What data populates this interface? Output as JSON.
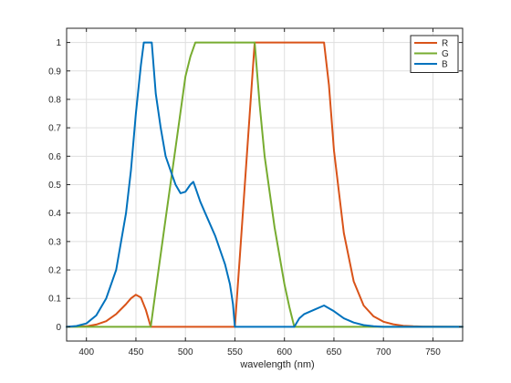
{
  "chart_data": {
    "type": "line",
    "title": "",
    "xlabel": "wavelength (nm)",
    "ylabel": "",
    "xlim": [
      380,
      780
    ],
    "ylim": [
      -0.05,
      1.05
    ],
    "xticks": [
      400,
      450,
      500,
      550,
      600,
      650,
      700,
      750
    ],
    "yticks": [
      0,
      0.1,
      0.2,
      0.3,
      0.4,
      0.5,
      0.6,
      0.7,
      0.8,
      0.9,
      1
    ],
    "ytick_labels": [
      "0",
      "0.1",
      "0.2",
      "0.3",
      "0.4",
      "0.5",
      "0.6",
      "0.7",
      "0.8",
      "0.9",
      "1"
    ],
    "grid": true,
    "legend_position": "top-right",
    "series": [
      {
        "name": "R",
        "color": "#d95319",
        "x": [
          380,
          400,
          410,
          420,
          430,
          440,
          445,
          450,
          455,
          460,
          465,
          470,
          500,
          540,
          550,
          555,
          560,
          565,
          570,
          575,
          580,
          600,
          620,
          640,
          645,
          650,
          660,
          670,
          680,
          690,
          700,
          710,
          720,
          730,
          740,
          780
        ],
        "y": [
          0,
          0.002,
          0.008,
          0.02,
          0.045,
          0.08,
          0.1,
          0.113,
          0.103,
          0.06,
          0,
          0,
          0,
          0,
          0,
          0.25,
          0.5,
          0.75,
          1,
          1,
          1,
          1,
          1,
          1,
          0.85,
          0.62,
          0.33,
          0.16,
          0.075,
          0.037,
          0.018,
          0.009,
          0.004,
          0.002,
          0.001,
          0
        ]
      },
      {
        "name": "G",
        "color": "#77ac30",
        "x": [
          380,
          460,
          465,
          470,
          480,
          490,
          500,
          505,
          510,
          520,
          540,
          560,
          570,
          575,
          580,
          590,
          600,
          605,
          610,
          620,
          780
        ],
        "y": [
          0,
          0,
          0,
          0.13,
          0.38,
          0.63,
          0.88,
          0.95,
          1,
          1,
          1,
          1,
          1,
          0.78,
          0.6,
          0.35,
          0.15,
          0.07,
          0,
          0,
          0
        ]
      },
      {
        "name": "B",
        "color": "#0072bd",
        "x": [
          380,
          390,
          400,
          410,
          420,
          430,
          440,
          445,
          450,
          455,
          458,
          460,
          465,
          466,
          470,
          475,
          480,
          485,
          490,
          495,
          500,
          505,
          508,
          510,
          515,
          520,
          530,
          540,
          545,
          548,
          550,
          560,
          580,
          600,
          610,
          615,
          620,
          630,
          640,
          650,
          660,
          670,
          680,
          690,
          700,
          780
        ],
        "y": [
          0,
          0.003,
          0.012,
          0.04,
          0.1,
          0.2,
          0.4,
          0.55,
          0.75,
          0.92,
          1,
          1,
          1,
          1,
          0.82,
          0.7,
          0.6,
          0.55,
          0.5,
          0.47,
          0.475,
          0.5,
          0.51,
          0.49,
          0.44,
          0.4,
          0.32,
          0.22,
          0.15,
          0.08,
          0,
          0,
          0,
          0,
          0,
          0.03,
          0.045,
          0.06,
          0.075,
          0.055,
          0.03,
          0.015,
          0.006,
          0.002,
          0,
          0
        ]
      }
    ]
  }
}
